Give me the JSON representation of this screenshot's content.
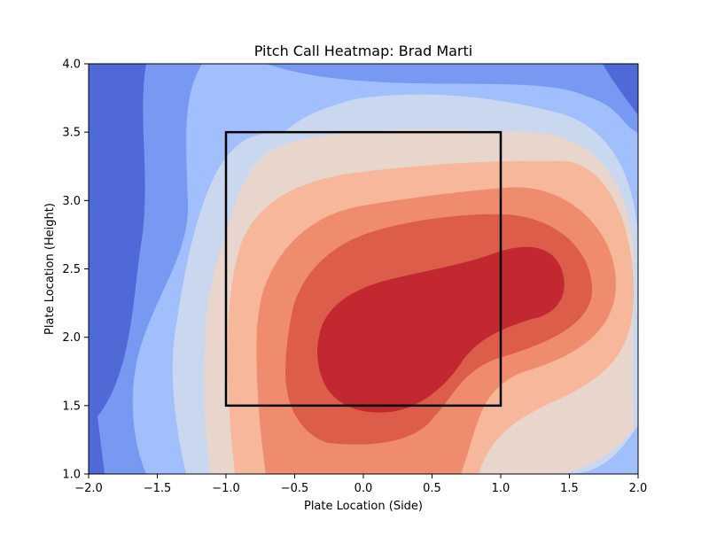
{
  "chart_data": {
    "type": "heatmap",
    "subtype": "filled-contour",
    "title": "Pitch Call Heatmap: Brad Marti",
    "xlabel": "Plate Location (Side)",
    "ylabel": "Plate Location (Height)",
    "xlim": [
      -2.0,
      2.0
    ],
    "ylim": [
      1.0,
      4.0
    ],
    "x_ticks": [
      -2.0,
      -1.5,
      -1.0,
      -0.5,
      0.0,
      0.5,
      1.0,
      1.5,
      2.0
    ],
    "y_ticks": [
      1.0,
      1.5,
      2.0,
      2.5,
      3.0,
      3.5,
      4.0
    ],
    "x_tick_labels": [
      "−2.0",
      "−1.5",
      "−1.0",
      "−0.5",
      "0.0",
      "0.5",
      "1.0",
      "1.5",
      "2.0"
    ],
    "y_tick_labels": [
      "1.0",
      "1.5",
      "2.0",
      "2.5",
      "3.0",
      "3.5",
      "4.0"
    ],
    "colormap": "coolwarm",
    "level_colors": [
      "#4f6ad6",
      "#7799f1",
      "#a1bffd",
      "#c9d7ef",
      "#e8d6cc",
      "#f6b79b",
      "#ef8c6e",
      "#dc5d4a",
      "#c2282f"
    ],
    "density_peaks": [
      {
        "x": 0.0,
        "y": 1.8,
        "level": 8
      },
      {
        "x": 1.2,
        "y": 2.4,
        "level": 8
      }
    ],
    "strike_zone": {
      "x": [
        -1.0,
        1.0
      ],
      "y": [
        1.5,
        3.5
      ],
      "color": "#000000"
    },
    "grid": false,
    "legend": "none"
  }
}
